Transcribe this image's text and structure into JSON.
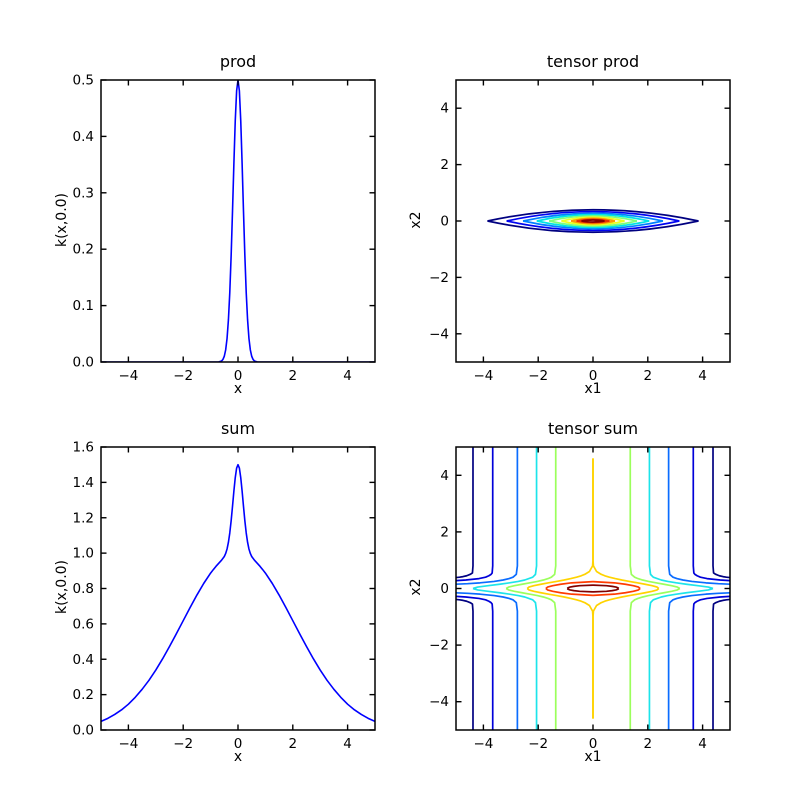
{
  "figure": {
    "background": "#ffffff",
    "frame_color": "#000000",
    "line_color": "#0000ff"
  },
  "chart_data": [
    {
      "id": "prod",
      "type": "line",
      "title": "prod",
      "xlabel": "x",
      "ylabel": "k(x,0.0)",
      "xlim": [
        -5,
        5
      ],
      "ylim": [
        0,
        0.5
      ],
      "grid": false,
      "xticks": [
        {
          "v": -4,
          "l": "−4"
        },
        {
          "v": -2,
          "l": "−2"
        },
        {
          "v": 0,
          "l": "0"
        },
        {
          "v": 2,
          "l": "2"
        },
        {
          "v": 4,
          "l": "4"
        }
      ],
      "yticks": [
        {
          "v": 0,
          "l": "0.0"
        },
        {
          "v": 0.1,
          "l": "0.1"
        },
        {
          "v": 0.2,
          "l": "0.2"
        },
        {
          "v": 0.3,
          "l": "0.3"
        },
        {
          "v": 0.4,
          "l": "0.4"
        },
        {
          "v": 0.5,
          "l": "0.5"
        }
      ],
      "series": [
        {
          "name": "k(x,0.0)",
          "color": "#0000ff",
          "symmetric": true,
          "x": [
            0,
            0.05,
            0.1,
            0.15,
            0.2,
            0.25,
            0.3,
            0.35,
            0.4,
            0.45,
            0.5,
            0.55,
            0.6,
            0.7,
            0.8,
            1,
            2,
            3,
            4,
            5
          ],
          "y": [
            0.5,
            0.481,
            0.428,
            0.352,
            0.268,
            0.189,
            0.123,
            0.0745,
            0.0416,
            0.0215,
            0.0102,
            0.0045,
            0.0018,
            0.0002,
            0,
            0,
            0,
            0,
            0,
            0
          ]
        }
      ]
    },
    {
      "id": "tensor_prod",
      "type": "contour",
      "title": "tensor prod",
      "xlabel": "x1",
      "ylabel": "x2",
      "xlim": [
        -5,
        5
      ],
      "ylim": [
        -5,
        5
      ],
      "grid": false,
      "xticks": [
        {
          "v": -4,
          "l": "−4"
        },
        {
          "v": -2,
          "l": "−2"
        },
        {
          "v": 0,
          "l": "0"
        },
        {
          "v": 2,
          "l": "2"
        },
        {
          "v": 4,
          "l": "4"
        }
      ],
      "yticks": [
        {
          "v": -4,
          "l": "−4"
        },
        {
          "v": -2,
          "l": "−2"
        },
        {
          "v": 0,
          "l": "0"
        },
        {
          "v": 2,
          "l": "2"
        },
        {
          "v": 4,
          "l": "4"
        }
      ],
      "rings": [
        {
          "level": 0.05,
          "a": 3.85,
          "b": 0.4,
          "color": "#000080"
        },
        {
          "level": 0.1,
          "a": 3.15,
          "b": 0.335,
          "color": "#0004f1"
        },
        {
          "level": 0.15,
          "a": 2.55,
          "b": 0.275,
          "color": "#0080ff"
        },
        {
          "level": 0.2,
          "a": 2.05,
          "b": 0.225,
          "color": "#00e4e4"
        },
        {
          "level": 0.25,
          "a": 1.6,
          "b": 0.18,
          "color": "#7dff7a"
        },
        {
          "level": 0.3,
          "a": 1.15,
          "b": 0.135,
          "color": "#eaff20"
        },
        {
          "level": 0.35,
          "a": 0.8,
          "b": 0.095,
          "color": "#ff9800"
        },
        {
          "level": 0.4,
          "a": 0.6,
          "b": 0.06,
          "color": "#e83000"
        },
        {
          "level": 0.45,
          "a": 0.42,
          "b": 0.035,
          "color": "#850000"
        }
      ]
    },
    {
      "id": "sum",
      "type": "line",
      "title": "sum",
      "xlabel": "x",
      "ylabel": "k(x,0.0)",
      "xlim": [
        -5,
        5
      ],
      "ylim": [
        0,
        1.6
      ],
      "grid": false,
      "xticks": [
        {
          "v": -4,
          "l": "−4"
        },
        {
          "v": -2,
          "l": "−2"
        },
        {
          "v": 0,
          "l": "0"
        },
        {
          "v": 2,
          "l": "2"
        },
        {
          "v": 4,
          "l": "4"
        }
      ],
      "yticks": [
        {
          "v": 0,
          "l": "0.0"
        },
        {
          "v": 0.2,
          "l": "0.2"
        },
        {
          "v": 0.4,
          "l": "0.4"
        },
        {
          "v": 0.6,
          "l": "0.6"
        },
        {
          "v": 0.8,
          "l": "0.8"
        },
        {
          "v": 1.0,
          "l": "1.0"
        },
        {
          "v": 1.2,
          "l": "1.2"
        },
        {
          "v": 1.4,
          "l": "1.4"
        },
        {
          "v": 1.6,
          "l": "1.6"
        }
      ],
      "series": [
        {
          "name": "k(x,0.0)",
          "color": "#0000ff",
          "symmetric": true,
          "x": [
            0,
            0.05,
            0.1,
            0.15,
            0.2,
            0.25,
            0.3,
            0.35,
            0.4,
            0.45,
            0.5,
            0.6,
            0.7,
            0.8,
            0.9,
            1,
            1.25,
            1.5,
            1.75,
            2,
            2.25,
            2.5,
            2.75,
            3,
            3.25,
            3.5,
            3.75,
            4,
            4.25,
            4.5,
            4.75,
            5
          ],
          "y": [
            1.5,
            1.481,
            1.427,
            1.351,
            1.265,
            1.183,
            1.114,
            1.061,
            1.023,
            0.998,
            0.981,
            0.96,
            0.943,
            0.926,
            0.907,
            0.887,
            0.829,
            0.763,
            0.692,
            0.618,
            0.544,
            0.472,
            0.403,
            0.339,
            0.281,
            0.23,
            0.185,
            0.146,
            0.114,
            0.088,
            0.066,
            0.049
          ]
        }
      ]
    },
    {
      "id": "tensor_sum",
      "type": "contour",
      "title": "tensor sum",
      "xlabel": "x1",
      "ylabel": "x2",
      "xlim": [
        -5,
        5
      ],
      "ylim": [
        -5,
        5
      ],
      "grid": false,
      "xticks": [
        {
          "v": -4,
          "l": "−4"
        },
        {
          "v": -2,
          "l": "−2"
        },
        {
          "v": 0,
          "l": "0"
        },
        {
          "v": 2,
          "l": "2"
        },
        {
          "v": 4,
          "l": "4"
        }
      ],
      "yticks": [
        {
          "v": -4,
          "l": "−4"
        },
        {
          "v": -2,
          "l": "−2"
        },
        {
          "v": 0,
          "l": "0"
        },
        {
          "v": 2,
          "l": "2"
        },
        {
          "v": 4,
          "l": "4"
        }
      ],
      "curves": [
        {
          "level": 0.1,
          "color": "#000080",
          "pts": [
            [
              4.38,
              5
            ],
            [
              4.38,
              0.8
            ],
            [
              4.4,
              0.55
            ],
            [
              4.48,
              0.5
            ],
            [
              4.61,
              0.45
            ],
            [
              4.74,
              0.42
            ],
            [
              4.87,
              0.4
            ],
            [
              5,
              0.386
            ]
          ]
        },
        {
          "level": 0.2,
          "color": "#0000d9",
          "pts": [
            [
              3.66,
              5
            ],
            [
              3.66,
              0.8
            ],
            [
              3.68,
              0.55
            ],
            [
              3.72,
              0.5
            ],
            [
              3.8,
              0.45
            ],
            [
              3.92,
              0.4
            ],
            [
              4.16,
              0.35
            ],
            [
              4.64,
              0.3
            ],
            [
              5,
              0.278
            ]
          ]
        },
        {
          "level": 0.4,
          "color": "#0a6cff",
          "pts": [
            [
              2.76,
              5
            ],
            [
              2.76,
              0.8
            ],
            [
              2.8,
              0.5
            ],
            [
              2.92,
              0.4
            ],
            [
              3.06,
              0.35
            ],
            [
              3.28,
              0.3
            ],
            [
              3.61,
              0.25
            ],
            [
              4.12,
              0.2
            ],
            [
              4.58,
              0.17
            ],
            [
              5,
              0.152
            ]
          ]
        },
        {
          "level": 0.6,
          "color": "#1de4ea",
          "pts": [
            [
              2.06,
              5
            ],
            [
              2.06,
              0.8
            ],
            [
              2.1,
              0.5
            ],
            [
              2.2,
              0.4
            ],
            [
              2.49,
              0.3
            ],
            [
              2.73,
              0.25
            ],
            [
              3.04,
              0.2
            ],
            [
              3.41,
              0.15
            ],
            [
              3.83,
              0.1
            ],
            [
              4.21,
              0.05
            ],
            [
              4.38,
              0
            ]
          ]
        },
        {
          "level": 0.8,
          "color": "#9bff5c",
          "pts": [
            [
              1.36,
              5
            ],
            [
              1.36,
              0.8
            ],
            [
              1.4,
              0.5
            ],
            [
              1.52,
              0.4
            ],
            [
              1.64,
              0.35
            ],
            [
              1.81,
              0.3
            ],
            [
              2.03,
              0.25
            ],
            [
              2.3,
              0.2
            ],
            [
              2.59,
              0.15
            ],
            [
              2.87,
              0.1
            ],
            [
              3.08,
              0.05
            ],
            [
              3.17,
              0
            ]
          ]
        },
        {
          "level": 1.0,
          "color": "#ffd300",
          "pts": [
            [
              0.001,
              4.6
            ],
            [
              0.001,
              1.0
            ],
            [
              0.015,
              0.8
            ],
            [
              0.13,
              0.6
            ],
            [
              0.3,
              0.5
            ],
            [
              0.43,
              0.45
            ],
            [
              0.6,
              0.4
            ],
            [
              0.81,
              0.35
            ],
            [
              1.05,
              0.3
            ],
            [
              1.33,
              0.25
            ],
            [
              1.62,
              0.2
            ],
            [
              1.9,
              0.15
            ],
            [
              2.16,
              0.1
            ],
            [
              2.34,
              0.05
            ],
            [
              2.4,
              0
            ]
          ]
        },
        {
          "level": 1.2,
          "color": "#ff3c00",
          "pts": [
            [
              0,
              0.244
            ],
            [
              0.78,
              0.2
            ],
            [
              1.18,
              0.15
            ],
            [
              1.47,
              0.1
            ],
            [
              1.66,
              0.05
            ],
            [
              1.72,
              0
            ]
          ]
        },
        {
          "level": 1.4,
          "color": "#800000",
          "pts": [
            [
              0,
              0.12
            ],
            [
              0.49,
              0.1
            ],
            [
              0.7,
              0.075
            ],
            [
              0.84,
              0.05
            ],
            [
              0.91,
              0.025
            ],
            [
              0.936,
              0
            ]
          ]
        }
      ]
    }
  ]
}
